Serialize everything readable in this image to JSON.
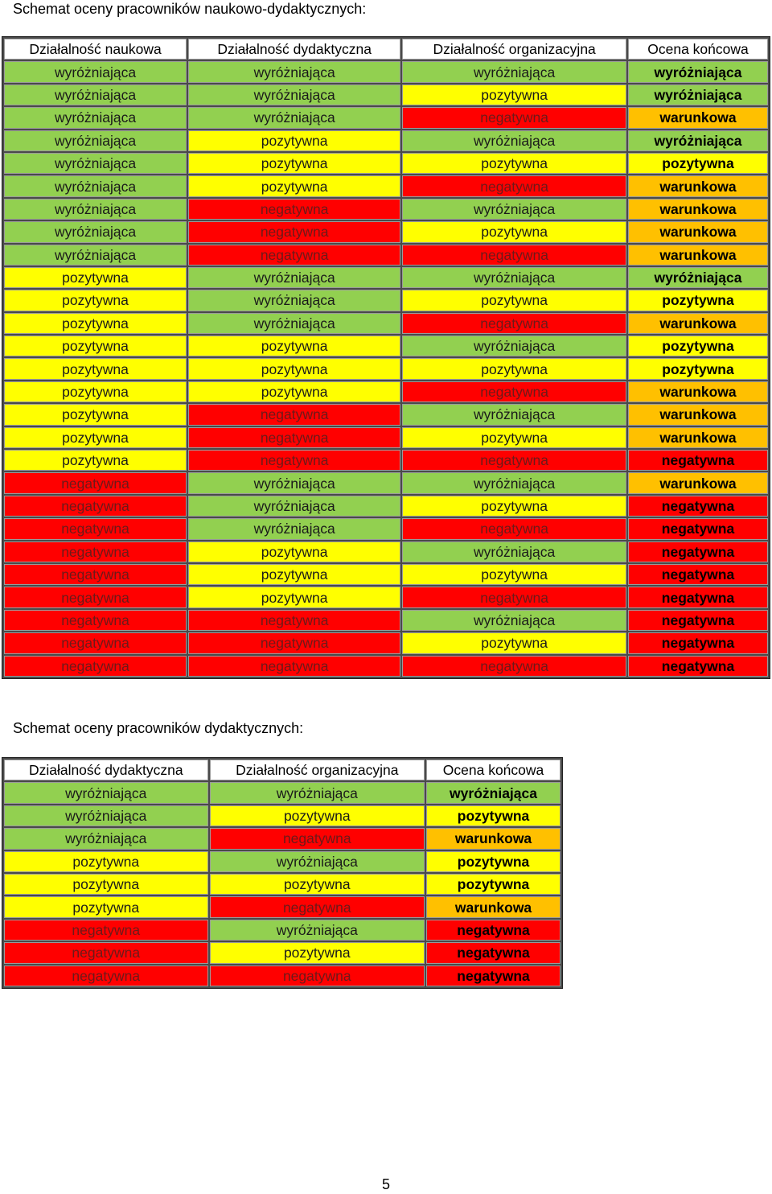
{
  "heading1": "Schemat oceny pracowników naukowo-dydaktycznych:",
  "heading2": "Schemat oceny pracowników dydaktycznych:",
  "table1": {
    "headers": [
      "Działalność naukowa",
      "Działalność dydaktyczna",
      "Działalność organizacyjna",
      "Ocena końcowa"
    ],
    "rows": [
      [
        "wyróżniająca",
        "wyróżniająca",
        "wyróżniająca",
        "wyróżniająca"
      ],
      [
        "wyróżniająca",
        "wyróżniająca",
        "pozytywna",
        "wyróżniająca"
      ],
      [
        "wyróżniająca",
        "wyróżniająca",
        "negatywna",
        "warunkowa"
      ],
      [
        "wyróżniająca",
        "pozytywna",
        "wyróżniająca",
        "wyróżniająca"
      ],
      [
        "wyróżniająca",
        "pozytywna",
        "pozytywna",
        "pozytywna"
      ],
      [
        "wyróżniająca",
        "pozytywna",
        "negatywna",
        "warunkowa"
      ],
      [
        "wyróżniająca",
        "negatywna",
        "wyróżniająca",
        "warunkowa"
      ],
      [
        "wyróżniająca",
        "negatywna",
        "pozytywna",
        "warunkowa"
      ],
      [
        "wyróżniająca",
        "negatywna",
        "negatywna",
        "warunkowa"
      ],
      [
        "pozytywna",
        "wyróżniająca",
        "wyróżniająca",
        "wyróżniająca"
      ],
      [
        "pozytywna",
        "wyróżniająca",
        "pozytywna",
        "pozytywna"
      ],
      [
        "pozytywna",
        "wyróżniająca",
        "negatywna",
        "warunkowa"
      ],
      [
        "pozytywna",
        "pozytywna",
        "wyróżniająca",
        "pozytywna"
      ],
      [
        "pozytywna",
        "pozytywna",
        "pozytywna",
        "pozytywna"
      ],
      [
        "pozytywna",
        "pozytywna",
        "negatywna",
        "warunkowa"
      ],
      [
        "pozytywna",
        "negatywna",
        "wyróżniająca",
        "warunkowa"
      ],
      [
        "pozytywna",
        "negatywna",
        "pozytywna",
        "warunkowa"
      ],
      [
        "pozytywna",
        "negatywna",
        "negatywna",
        "negatywna"
      ],
      [
        "negatywna",
        "wyróżniająca",
        "wyróżniająca",
        "warunkowa"
      ],
      [
        "negatywna",
        "wyróżniająca",
        "pozytywna",
        "negatywna"
      ],
      [
        "negatywna",
        "wyróżniająca",
        "negatywna",
        "negatywna"
      ],
      [
        "negatywna",
        "pozytywna",
        "wyróżniająca",
        "negatywna"
      ],
      [
        "negatywna",
        "pozytywna",
        "pozytywna",
        "negatywna"
      ],
      [
        "negatywna",
        "pozytywna",
        "negatywna",
        "negatywna"
      ],
      [
        "negatywna",
        "negatywna",
        "wyróżniająca",
        "negatywna"
      ],
      [
        "negatywna",
        "negatywna",
        "pozytywna",
        "negatywna"
      ],
      [
        "negatywna",
        "negatywna",
        "negatywna",
        "negatywna"
      ]
    ]
  },
  "table2": {
    "headers": [
      "Działalność dydaktyczna",
      "Działalność organizacyjna",
      "Ocena końcowa"
    ],
    "rows": [
      [
        "wyróżniająca",
        "wyróżniająca",
        "wyróżniająca"
      ],
      [
        "wyróżniająca",
        "pozytywna",
        "pozytywna"
      ],
      [
        "wyróżniająca",
        "negatywna",
        "warunkowa"
      ],
      [
        "pozytywna",
        "wyróżniająca",
        "pozytywna"
      ],
      [
        "pozytywna",
        "pozytywna",
        "pozytywna"
      ],
      [
        "pozytywna",
        "negatywna",
        "warunkowa"
      ],
      [
        "negatywna",
        "wyróżniająca",
        "negatywna"
      ],
      [
        "negatywna",
        "pozytywna",
        "negatywna"
      ],
      [
        "negatywna",
        "negatywna",
        "negatywna"
      ]
    ]
  },
  "colors": {
    "wyróżniająca": "#92d050",
    "pozytywna": "#ffff00",
    "negatywna": "#ff0000",
    "warunkowa": "#ffc000"
  },
  "page_number": "5"
}
